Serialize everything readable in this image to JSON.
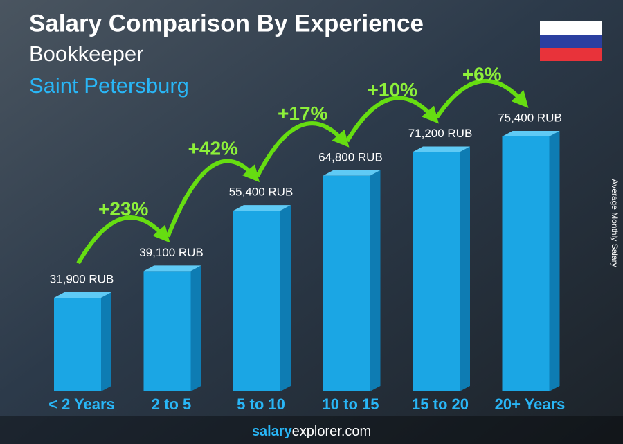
{
  "chart_data": {
    "type": "bar3d",
    "title": "Salary Comparison By Experience",
    "subtitle": "Bookkeeper",
    "location": "Saint Petersburg",
    "axis_label": "Average Monthly Salary",
    "categories": [
      "< 2 Years",
      "2 to 5",
      "5 to 10",
      "10 to 15",
      "15 to 20",
      "20+ Years"
    ],
    "values": [
      31900,
      39100,
      55400,
      64800,
      71200,
      75400
    ],
    "value_labels": [
      "31,900 RUB",
      "39,100 RUB",
      "55,400 RUB",
      "64,800 RUB",
      "71,200 RUB",
      "75,400 RUB"
    ],
    "changes": [
      "+23%",
      "+42%",
      "+17%",
      "+10%",
      "+6%"
    ],
    "color": "#1ba6e4",
    "footer": {
      "bold": "salary",
      "rest": "explorer.com"
    }
  }
}
